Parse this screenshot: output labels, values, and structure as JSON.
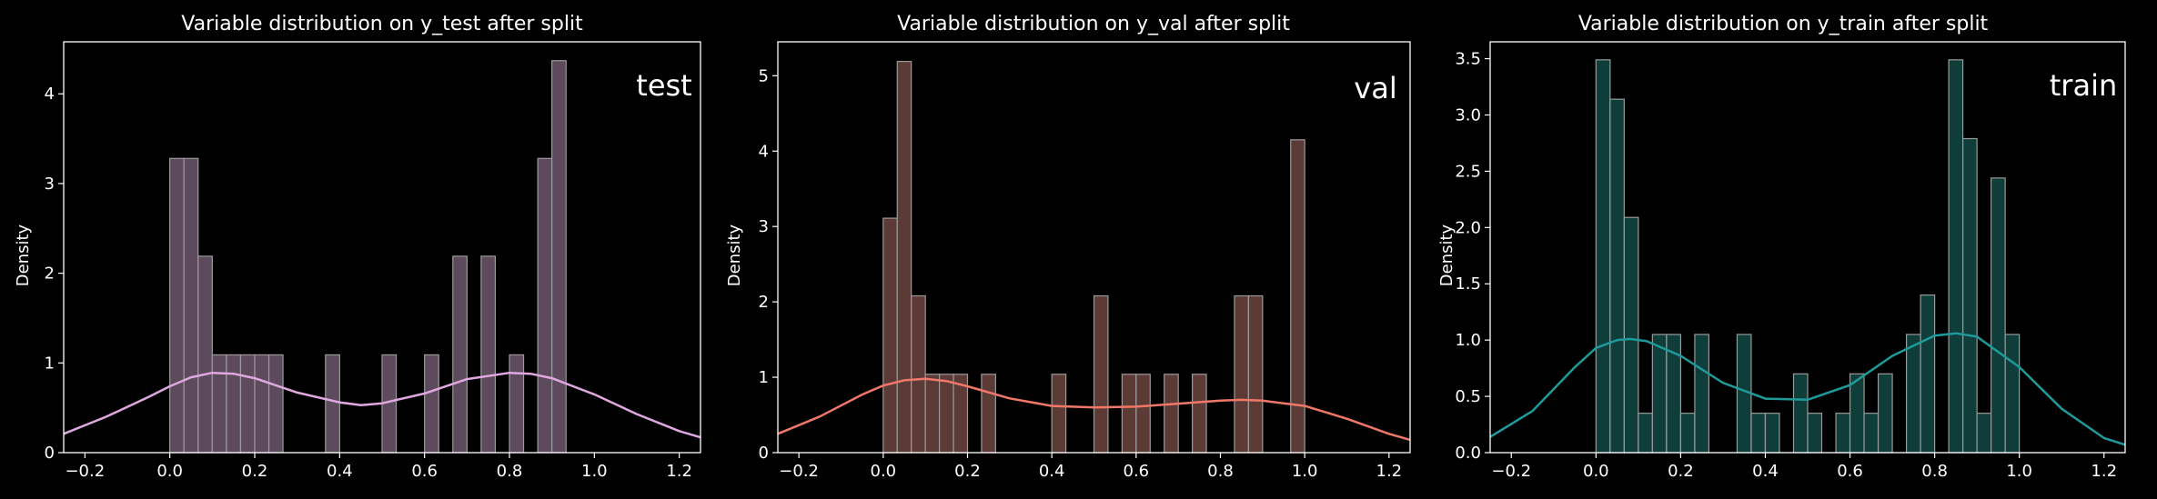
{
  "figure": {
    "background": "#000000",
    "text_color": "#ffffff"
  },
  "chart_data": [
    {
      "type": "bar",
      "title": "Variable distribution on y_test after split",
      "xlabel": "",
      "ylabel": "Density",
      "annotation": "test",
      "xlim": [
        -0.25,
        1.25
      ],
      "ylim": [
        0,
        4.58
      ],
      "xticks": [
        "−0.2",
        "0.0",
        "0.2",
        "0.4",
        "0.6",
        "0.8",
        "1.0",
        "1.2"
      ],
      "xtick_values": [
        -0.2,
        0,
        0.2,
        0.4,
        0.6,
        0.8,
        1.0,
        1.2
      ],
      "yticks": [
        "0",
        "1",
        "2",
        "3",
        "4"
      ],
      "ytick_values": [
        0,
        1,
        2,
        3,
        4
      ],
      "bar_color": "#5d4a5d",
      "kde_color": "#e0a8e0",
      "bin_width": 0.0333,
      "bins": [
        0.0,
        0.0333,
        0.0667,
        0.1,
        0.1333,
        0.1667,
        0.2,
        0.2333,
        0.3667,
        0.5,
        0.6,
        0.6667,
        0.7333,
        0.8,
        0.8667,
        0.9
      ],
      "values": [
        3.28,
        3.28,
        2.19,
        1.09,
        1.09,
        1.09,
        1.09,
        1.09,
        1.09,
        1.09,
        1.09,
        2.19,
        2.19,
        1.09,
        3.28,
        4.37
      ],
      "kde": {
        "x": [
          -0.25,
          -0.15,
          -0.05,
          0.0,
          0.05,
          0.1,
          0.15,
          0.2,
          0.3,
          0.4,
          0.45,
          0.5,
          0.6,
          0.7,
          0.8,
          0.85,
          0.9,
          1.0,
          1.1,
          1.2,
          1.25
        ],
        "y": [
          0.21,
          0.4,
          0.62,
          0.74,
          0.84,
          0.89,
          0.88,
          0.83,
          0.67,
          0.56,
          0.53,
          0.55,
          0.66,
          0.82,
          0.89,
          0.88,
          0.83,
          0.65,
          0.43,
          0.24,
          0.17
        ]
      }
    },
    {
      "type": "bar",
      "title": "Variable distribution on y_val after split",
      "xlabel": "",
      "ylabel": "Density",
      "annotation": "val",
      "xlim": [
        -0.25,
        1.25
      ],
      "ylim": [
        0,
        5.45
      ],
      "xticks": [
        "−0.2",
        "0.0",
        "0.2",
        "0.4",
        "0.6",
        "0.8",
        "1.0",
        "1.2"
      ],
      "xtick_values": [
        -0.2,
        0,
        0.2,
        0.4,
        0.6,
        0.8,
        1.0,
        1.2
      ],
      "yticks": [
        "0",
        "1",
        "2",
        "3",
        "4",
        "5"
      ],
      "ytick_values": [
        0,
        1,
        2,
        3,
        4,
        5
      ],
      "bar_color": "#5c3a36",
      "kde_color": "#f07868",
      "bin_width": 0.0333,
      "bins": [
        0.0,
        0.0333,
        0.0667,
        0.1,
        0.1333,
        0.1667,
        0.2333,
        0.4,
        0.5,
        0.5667,
        0.6,
        0.6667,
        0.7333,
        0.8333,
        0.8667,
        0.9667
      ],
      "values": [
        3.11,
        5.19,
        2.08,
        1.04,
        1.04,
        1.04,
        1.04,
        1.04,
        2.08,
        1.04,
        1.04,
        1.04,
        1.04,
        2.08,
        2.08,
        4.15
      ],
      "kde": {
        "x": [
          -0.25,
          -0.15,
          -0.05,
          0.0,
          0.05,
          0.1,
          0.15,
          0.2,
          0.3,
          0.4,
          0.5,
          0.6,
          0.7,
          0.8,
          0.85,
          0.9,
          1.0,
          1.1,
          1.2,
          1.25
        ],
        "y": [
          0.25,
          0.48,
          0.77,
          0.89,
          0.96,
          0.98,
          0.95,
          0.88,
          0.72,
          0.62,
          0.6,
          0.61,
          0.65,
          0.69,
          0.7,
          0.69,
          0.62,
          0.45,
          0.25,
          0.17
        ]
      }
    },
    {
      "type": "bar",
      "title": "Variable distribution on y_train after split",
      "xlabel": "",
      "ylabel": "Density",
      "annotation": "train",
      "xlim": [
        -0.25,
        1.25
      ],
      "ylim": [
        0,
        3.65
      ],
      "xticks": [
        "−0.2",
        "0.0",
        "0.2",
        "0.4",
        "0.6",
        "0.8",
        "1.0",
        "1.2"
      ],
      "xtick_values": [
        -0.2,
        0,
        0.2,
        0.4,
        0.6,
        0.8,
        1.0,
        1.2
      ],
      "yticks": [
        "0.0",
        "0.5",
        "1.0",
        "1.5",
        "2.0",
        "2.5",
        "3.0",
        "3.5"
      ],
      "ytick_values": [
        0,
        0.5,
        1.0,
        1.5,
        2.0,
        2.5,
        3.0,
        3.5
      ],
      "bar_color": "#0f3d3a",
      "kde_color": "#1e9a9a",
      "bin_width": 0.0333,
      "bins": [
        0.0,
        0.0333,
        0.0667,
        0.1,
        0.1333,
        0.1667,
        0.2,
        0.2333,
        0.3333,
        0.3667,
        0.4,
        0.4667,
        0.5,
        0.5667,
        0.6,
        0.6333,
        0.6667,
        0.7333,
        0.7667,
        0.8333,
        0.8667,
        0.9,
        0.9333,
        0.9667
      ],
      "values": [
        3.49,
        3.14,
        2.09,
        0.35,
        1.05,
        1.05,
        0.35,
        1.05,
        1.05,
        0.35,
        0.35,
        0.7,
        0.35,
        0.35,
        0.7,
        0.35,
        0.7,
        1.05,
        1.4,
        3.49,
        2.79,
        0.35,
        2.44,
        1.05
      ],
      "kde": {
        "x": [
          -0.25,
          -0.15,
          -0.05,
          0.0,
          0.05,
          0.08,
          0.12,
          0.2,
          0.3,
          0.4,
          0.5,
          0.6,
          0.7,
          0.8,
          0.85,
          0.9,
          1.0,
          1.1,
          1.2,
          1.25
        ],
        "y": [
          0.14,
          0.37,
          0.76,
          0.93,
          1.0,
          1.01,
          0.99,
          0.86,
          0.62,
          0.48,
          0.47,
          0.6,
          0.86,
          1.04,
          1.06,
          1.03,
          0.76,
          0.39,
          0.13,
          0.07
        ]
      }
    }
  ]
}
